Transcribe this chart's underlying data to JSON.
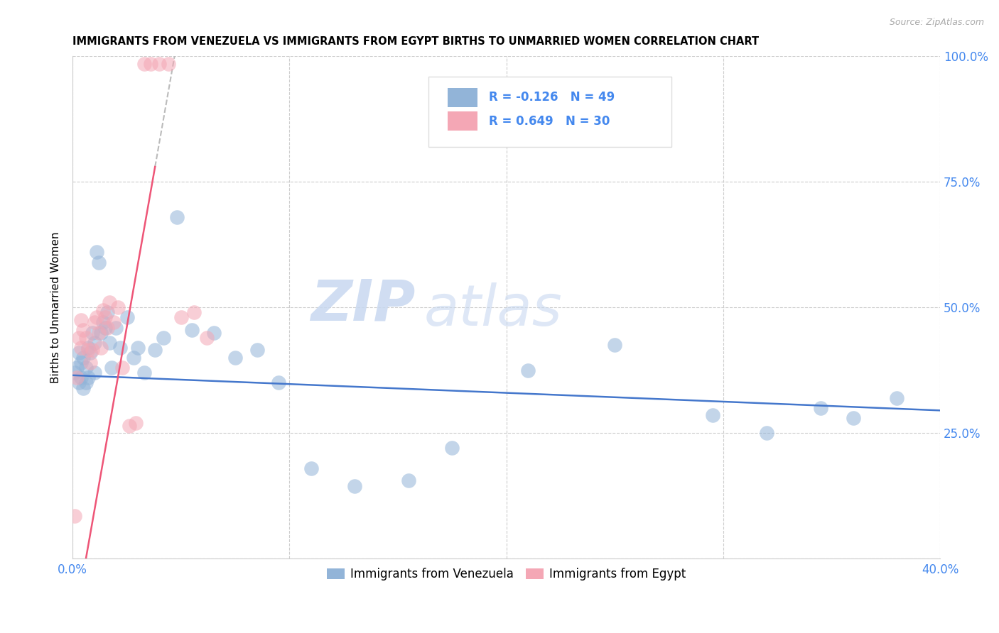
{
  "title": "IMMIGRANTS FROM VENEZUELA VS IMMIGRANTS FROM EGYPT BIRTHS TO UNMARRIED WOMEN CORRELATION CHART",
  "source": "Source: ZipAtlas.com",
  "ylabel": "Births to Unmarried Women",
  "x_min": 0.0,
  "x_max": 0.4,
  "y_min": 0.0,
  "y_max": 1.0,
  "legend_blue_label": "Immigrants from Venezuela",
  "legend_pink_label": "Immigrants from Egypt",
  "R_blue": -0.126,
  "N_blue": 49,
  "R_pink": 0.649,
  "N_pink": 30,
  "blue_color": "#92B4D8",
  "pink_color": "#F4A7B5",
  "trendline_blue_color": "#4477CC",
  "trendline_pink_color": "#EE5577",
  "trendline_dashed_color": "#BBBBBB",
  "watermark_zip": "ZIP",
  "watermark_atlas": "atlas",
  "venezuela_x": [
    0.001,
    0.002,
    0.003,
    0.003,
    0.004,
    0.004,
    0.005,
    0.005,
    0.006,
    0.006,
    0.007,
    0.007,
    0.008,
    0.009,
    0.01,
    0.01,
    0.011,
    0.012,
    0.013,
    0.014,
    0.015,
    0.016,
    0.017,
    0.018,
    0.02,
    0.022,
    0.025,
    0.028,
    0.03,
    0.033,
    0.038,
    0.042,
    0.048,
    0.055,
    0.065,
    0.075,
    0.085,
    0.095,
    0.11,
    0.13,
    0.155,
    0.175,
    0.21,
    0.25,
    0.295,
    0.32,
    0.345,
    0.36,
    0.38
  ],
  "venezuela_y": [
    0.37,
    0.38,
    0.35,
    0.41,
    0.36,
    0.39,
    0.34,
    0.4,
    0.35,
    0.38,
    0.36,
    0.42,
    0.41,
    0.45,
    0.37,
    0.43,
    0.61,
    0.59,
    0.45,
    0.47,
    0.46,
    0.49,
    0.43,
    0.38,
    0.46,
    0.42,
    0.48,
    0.4,
    0.42,
    0.37,
    0.415,
    0.44,
    0.68,
    0.455,
    0.45,
    0.4,
    0.415,
    0.35,
    0.18,
    0.145,
    0.155,
    0.22,
    0.375,
    0.425,
    0.285,
    0.25,
    0.3,
    0.28,
    0.32
  ],
  "egypt_x": [
    0.001,
    0.002,
    0.003,
    0.004,
    0.004,
    0.005,
    0.006,
    0.007,
    0.008,
    0.009,
    0.01,
    0.011,
    0.012,
    0.013,
    0.014,
    0.015,
    0.016,
    0.017,
    0.019,
    0.021,
    0.023,
    0.026,
    0.029,
    0.033,
    0.036,
    0.04,
    0.044,
    0.05,
    0.056,
    0.062
  ],
  "egypt_y": [
    0.085,
    0.36,
    0.44,
    0.475,
    0.42,
    0.455,
    0.44,
    0.415,
    0.39,
    0.415,
    0.47,
    0.48,
    0.45,
    0.42,
    0.495,
    0.48,
    0.46,
    0.51,
    0.47,
    0.5,
    0.38,
    0.265,
    0.27,
    0.985,
    0.985,
    0.985,
    0.985,
    0.48,
    0.49,
    0.44
  ]
}
